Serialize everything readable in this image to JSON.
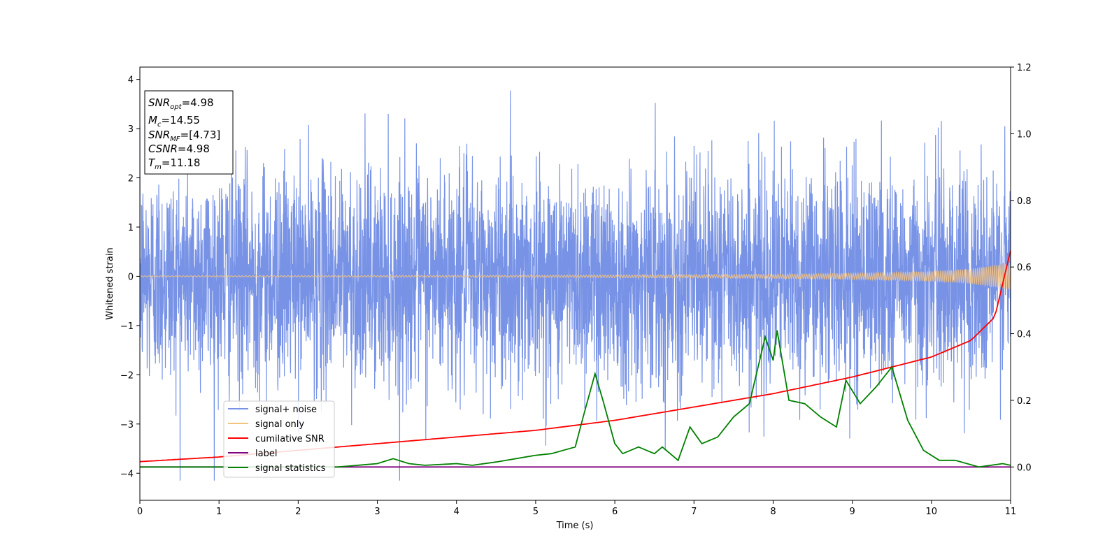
{
  "chart_data": {
    "type": "line",
    "xlabel": "Time (s)",
    "ylabel": "Whitened strain",
    "xlim": [
      0,
      11
    ],
    "ylim": [
      -4.55,
      4.25
    ],
    "y2lim": [
      -0.1,
      1.2
    ],
    "x_ticks": [
      "0",
      "1",
      "2",
      "3",
      "4",
      "5",
      "6",
      "7",
      "8",
      "9",
      "10",
      "11"
    ],
    "y_ticks": [
      "−4",
      "−3",
      "−2",
      "−1",
      "0",
      "1",
      "2",
      "3",
      "4"
    ],
    "y2_ticks": [
      "0.0",
      "0.2",
      "0.4",
      "0.6",
      "0.8",
      "1.0",
      "1.2"
    ],
    "grid": false,
    "legend_position": "lower-left",
    "annotation": {
      "lines": [
        {
          "base": "SNR",
          "sub": "opt",
          "value": "=4.98"
        },
        {
          "base": "M",
          "sub": "c",
          "value": "=14.55"
        },
        {
          "base": "SNR",
          "sub": "MF",
          "value": "=[4.73]"
        },
        {
          "base": "CSNR",
          "sub": "",
          "value": "=4.98"
        },
        {
          "base": "T",
          "sub": "m",
          "value": "=11.18"
        }
      ]
    },
    "series": [
      {
        "name": "signal+ noise",
        "color": "#7893e6",
        "axis": "left",
        "noise_std": 1.1,
        "range": [
          -4.15,
          3.85
        ]
      },
      {
        "name": "signal only",
        "color": "#f5c27e",
        "axis": "left",
        "envelope": {
          "x": [
            0,
            5,
            8,
            9,
            10,
            10.5,
            11
          ],
          "amp": [
            0.01,
            0.02,
            0.04,
            0.06,
            0.1,
            0.15,
            0.28
          ]
        }
      },
      {
        "name": "cumilative SNR",
        "color": "#ff0000",
        "axis": "right",
        "x": [
          0,
          1,
          2,
          3,
          4,
          5,
          6,
          7,
          8,
          9,
          10,
          10.5,
          10.8,
          11
        ],
        "y": [
          0.016,
          0.03,
          0.05,
          0.07,
          0.09,
          0.11,
          0.14,
          0.18,
          0.22,
          0.27,
          0.33,
          0.38,
          0.45,
          0.65
        ]
      },
      {
        "name": "label",
        "color": "#800080",
        "axis": "right",
        "x": [
          0,
          11
        ],
        "y": [
          0.0,
          0.0
        ]
      },
      {
        "name": "signal statistics",
        "color": "#008000",
        "axis": "right",
        "x": [
          0,
          2.5,
          3.0,
          3.2,
          3.4,
          3.6,
          4.0,
          4.2,
          4.5,
          5.0,
          5.2,
          5.5,
          5.6,
          5.75,
          5.85,
          6.0,
          6.1,
          6.3,
          6.5,
          6.6,
          6.8,
          6.95,
          7.1,
          7.3,
          7.5,
          7.7,
          7.9,
          8.0,
          8.05,
          8.2,
          8.4,
          8.6,
          8.8,
          8.92,
          9.1,
          9.3,
          9.5,
          9.7,
          9.9,
          10.1,
          10.3,
          10.6,
          10.9,
          11
        ],
        "y": [
          0.0,
          0.0,
          0.01,
          0.025,
          0.01,
          0.005,
          0.01,
          0.005,
          0.015,
          0.035,
          0.04,
          0.06,
          0.15,
          0.28,
          0.2,
          0.07,
          0.04,
          0.06,
          0.04,
          0.06,
          0.02,
          0.12,
          0.07,
          0.09,
          0.15,
          0.19,
          0.39,
          0.32,
          0.41,
          0.2,
          0.19,
          0.15,
          0.12,
          0.26,
          0.19,
          0.24,
          0.3,
          0.14,
          0.05,
          0.02,
          0.02,
          0.0,
          0.01,
          0.005
        ]
      }
    ]
  }
}
